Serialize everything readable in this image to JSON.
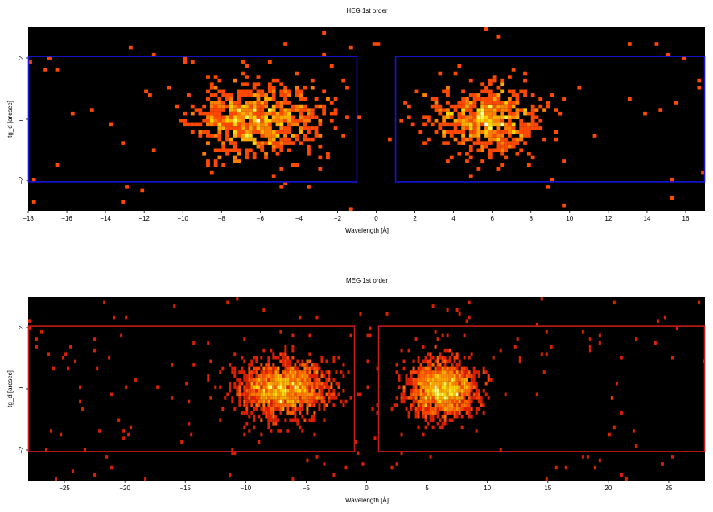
{
  "chart_data": [
    {
      "type": "heatmap",
      "title": "HEG 1st order",
      "xlabel": "Wavelength [Å]",
      "ylabel": "tg_d [arcsec]",
      "xlim": [
        -18,
        17
      ],
      "ylim": [
        -3,
        3
      ],
      "xticks": [
        -18,
        -16,
        -14,
        -12,
        -10,
        -8,
        -6,
        -4,
        -2,
        0,
        2,
        4,
        6,
        8,
        10,
        12,
        14,
        16
      ],
      "yticks": [
        -2,
        0,
        2
      ],
      "grid": false,
      "colormap": "hot",
      "background": "#000000",
      "box_color": "#1515d8",
      "regions": [
        {
          "x": [
            -18,
            -1.0
          ],
          "y": [
            -2.05,
            2.05
          ]
        },
        {
          "x": [
            1.0,
            17
          ],
          "y": [
            -2.05,
            2.05
          ]
        }
      ],
      "clusters": [
        {
          "center_x": -6.2,
          "center_y": 0.0,
          "spread_x": 3.0,
          "spread_y": 0.6,
          "x_range": [
            -12.5,
            -1.0
          ],
          "count": 700
        },
        {
          "center_x": 5.6,
          "center_y": 0.0,
          "spread_x": 2.6,
          "spread_y": 0.55,
          "x_range": [
            1.0,
            11.5
          ],
          "count": 560
        }
      ],
      "bin_size": [
        0.2,
        0.12
      ],
      "seed": 11
    },
    {
      "type": "heatmap",
      "title": "MEG 1st order",
      "xlabel": "Wavelength [Å]",
      "ylabel": "tg_d [arcsec]",
      "xlim": [
        -28,
        28
      ],
      "ylim": [
        -3,
        3
      ],
      "xticks": [
        -25,
        -20,
        -15,
        -10,
        -5,
        0,
        5,
        10,
        15,
        20,
        25
      ],
      "yticks": [
        -2,
        0,
        2
      ],
      "grid": false,
      "colormap": "hot",
      "background": "#000000",
      "box_color": "#c41a1a",
      "regions": [
        {
          "x": [
            -28,
            -1.0
          ],
          "y": [
            -2.05,
            2.05
          ]
        },
        {
          "x": [
            1.0,
            28
          ],
          "y": [
            -2.05,
            2.05
          ]
        }
      ],
      "clusters": [
        {
          "center_x": -6.8,
          "center_y": 0.0,
          "spread_x": 3.4,
          "spread_y": 0.45,
          "x_range": [
            -16,
            -1.0
          ],
          "count": 1600
        },
        {
          "center_x": 6.3,
          "center_y": 0.0,
          "spread_x": 2.6,
          "spread_y": 0.45,
          "x_range": [
            1.0,
            14
          ],
          "count": 1500
        }
      ],
      "bin_size": [
        0.2,
        0.12
      ],
      "seed": 29
    }
  ]
}
